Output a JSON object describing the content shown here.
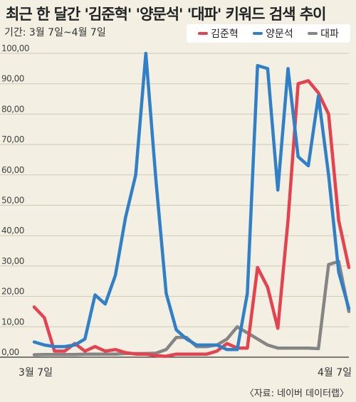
{
  "title": "최근 한 달간 '김준혁' '양문석' '대파' 키워드 검색 추이",
  "subtitle": "기간: 3월 7일~4월 7일",
  "source": "〈자료: 네이버 데이터랩〉",
  "colors": {
    "김준혁": "#e5414f",
    "양문석": "#2f80c8",
    "대파": "#858585",
    "grid": "#cfc9b8",
    "axis": "#333333"
  },
  "chart_data": {
    "type": "line",
    "title": "최근 한 달간 '김준혁' '양문석' '대파' 키워드 검색 추이",
    "xlabel": "",
    "ylabel": "",
    "ylim": [
      0,
      100
    ],
    "yticks": [
      "0,00",
      "10,00",
      "20,00",
      "30,00",
      "40,00",
      "50,00",
      "60,00",
      "70,00",
      "80,00",
      "90,00",
      "100,00"
    ],
    "x_tick_labels": {
      "first": "3월 7일",
      "last": "4월 7일"
    },
    "x": [
      "3/7",
      "3/8",
      "3/9",
      "3/10",
      "3/11",
      "3/12",
      "3/13",
      "3/14",
      "3/15",
      "3/16",
      "3/17",
      "3/18",
      "3/19",
      "3/20",
      "3/21",
      "3/22",
      "3/23",
      "3/24",
      "3/25",
      "3/26",
      "3/27",
      "3/28",
      "3/29",
      "3/30",
      "3/31",
      "4/1",
      "4/2",
      "4/3",
      "4/4",
      "4/5",
      "4/6",
      "4/7"
    ],
    "legend_position": "top-right",
    "grid": true,
    "series": [
      {
        "name": "김준혁",
        "color": "#e5414f",
        "values": [
          16.5,
          13,
          2,
          2,
          4.5,
          2,
          3.5,
          2,
          2.5,
          1.5,
          1,
          1,
          0.5,
          0.3,
          1,
          1,
          1,
          1,
          2,
          4.5,
          3,
          3,
          29.5,
          23,
          9.5,
          45,
          90,
          91,
          87,
          80,
          45,
          29.5
        ]
      },
      {
        "name": "양문석",
        "color": "#2f80c8",
        "values": [
          5,
          4,
          3.5,
          3.5,
          4,
          6,
          20.5,
          17.5,
          27,
          46,
          60,
          100,
          58,
          21,
          9,
          6,
          4,
          4,
          4,
          2.5,
          2.5,
          21,
          96,
          95,
          55,
          95,
          66,
          63,
          86,
          60,
          28,
          16
        ]
      },
      {
        "name": "대파",
        "color": "#858585",
        "values": [
          0.8,
          0.9,
          0.9,
          0.9,
          0.9,
          1,
          1,
          1,
          1,
          1.2,
          1.2,
          1.2,
          1.3,
          2.5,
          6.5,
          6.5,
          3.5,
          3.5,
          4,
          6,
          10,
          8,
          6,
          4,
          3,
          3,
          3,
          3,
          2.8,
          30.5,
          31.5,
          15
        ]
      }
    ]
  }
}
